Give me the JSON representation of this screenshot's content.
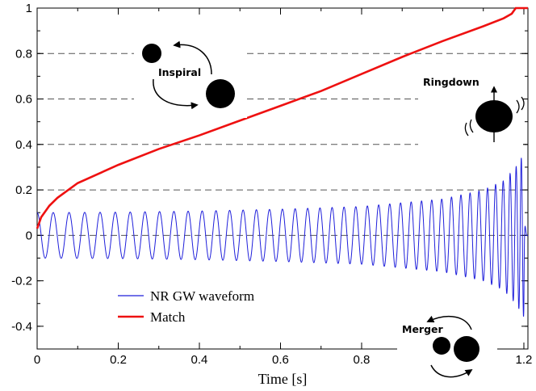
{
  "chart_data": {
    "type": "line",
    "title": "",
    "xlabel": "Time [s]",
    "ylabel": "",
    "xlim": [
      0,
      1.21
    ],
    "ylim": [
      -0.5,
      1.0
    ],
    "x_ticks": [
      0,
      0.2,
      0.4,
      0.6,
      0.8,
      1.2
    ],
    "x_tick_labels": [
      "0",
      "0.2",
      "0.4",
      "0.6",
      "0.8",
      "1.2"
    ],
    "y_ticks": [
      -0.4,
      -0.2,
      0,
      0.2,
      0.4,
      0.6,
      0.8,
      1
    ],
    "y_tick_labels": [
      "-0.4",
      "-0.2",
      "0",
      "0.2",
      "0.4",
      "0.6",
      "0.8",
      "1"
    ],
    "gridlines_y": [
      0.2,
      0.4,
      0.6,
      0.8
    ],
    "zero_line": 0,
    "series": [
      {
        "name": "NR GW waveform",
        "color": "#1f1fdb",
        "kind": "chirp-oscillation",
        "x": [
          0,
          0.2,
          0.4,
          0.6,
          0.8,
          1.0,
          1.1,
          1.15,
          1.18,
          1.2,
          1.21
        ],
        "amplitude": [
          0.1,
          0.102,
          0.107,
          0.115,
          0.127,
          0.16,
          0.2,
          0.24,
          0.3,
          0.36,
          0.0
        ],
        "frequency_hz": [
          25,
          27,
          29,
          31.5,
          35,
          41,
          47,
          55,
          70,
          95,
          95
        ],
        "min_value": -0.39,
        "max_value": 0.36
      },
      {
        "name": "Match",
        "color": "#ee1111",
        "x": [
          0,
          0.01,
          0.03,
          0.05,
          0.1,
          0.2,
          0.3,
          0.4,
          0.5,
          0.6,
          0.7,
          0.8,
          0.9,
          1.0,
          1.1,
          1.15,
          1.17,
          1.18,
          1.2,
          1.21
        ],
        "values": [
          0.03,
          0.08,
          0.13,
          0.165,
          0.23,
          0.31,
          0.38,
          0.44,
          0.505,
          0.57,
          0.635,
          0.71,
          0.785,
          0.855,
          0.92,
          0.955,
          0.975,
          1.0,
          1.0,
          1.0
        ]
      }
    ],
    "legend": {
      "placement": "bottom-left",
      "entries": [
        {
          "label": "NR GW waveform",
          "color": "#1f1fdb"
        },
        {
          "label": "Match",
          "color": "#ee1111"
        }
      ]
    },
    "annotations": [
      {
        "key": "inspiral",
        "text": "Inspiral"
      },
      {
        "key": "ringdown",
        "text": "Ringdown"
      },
      {
        "key": "merger",
        "text": "Merger"
      }
    ]
  }
}
